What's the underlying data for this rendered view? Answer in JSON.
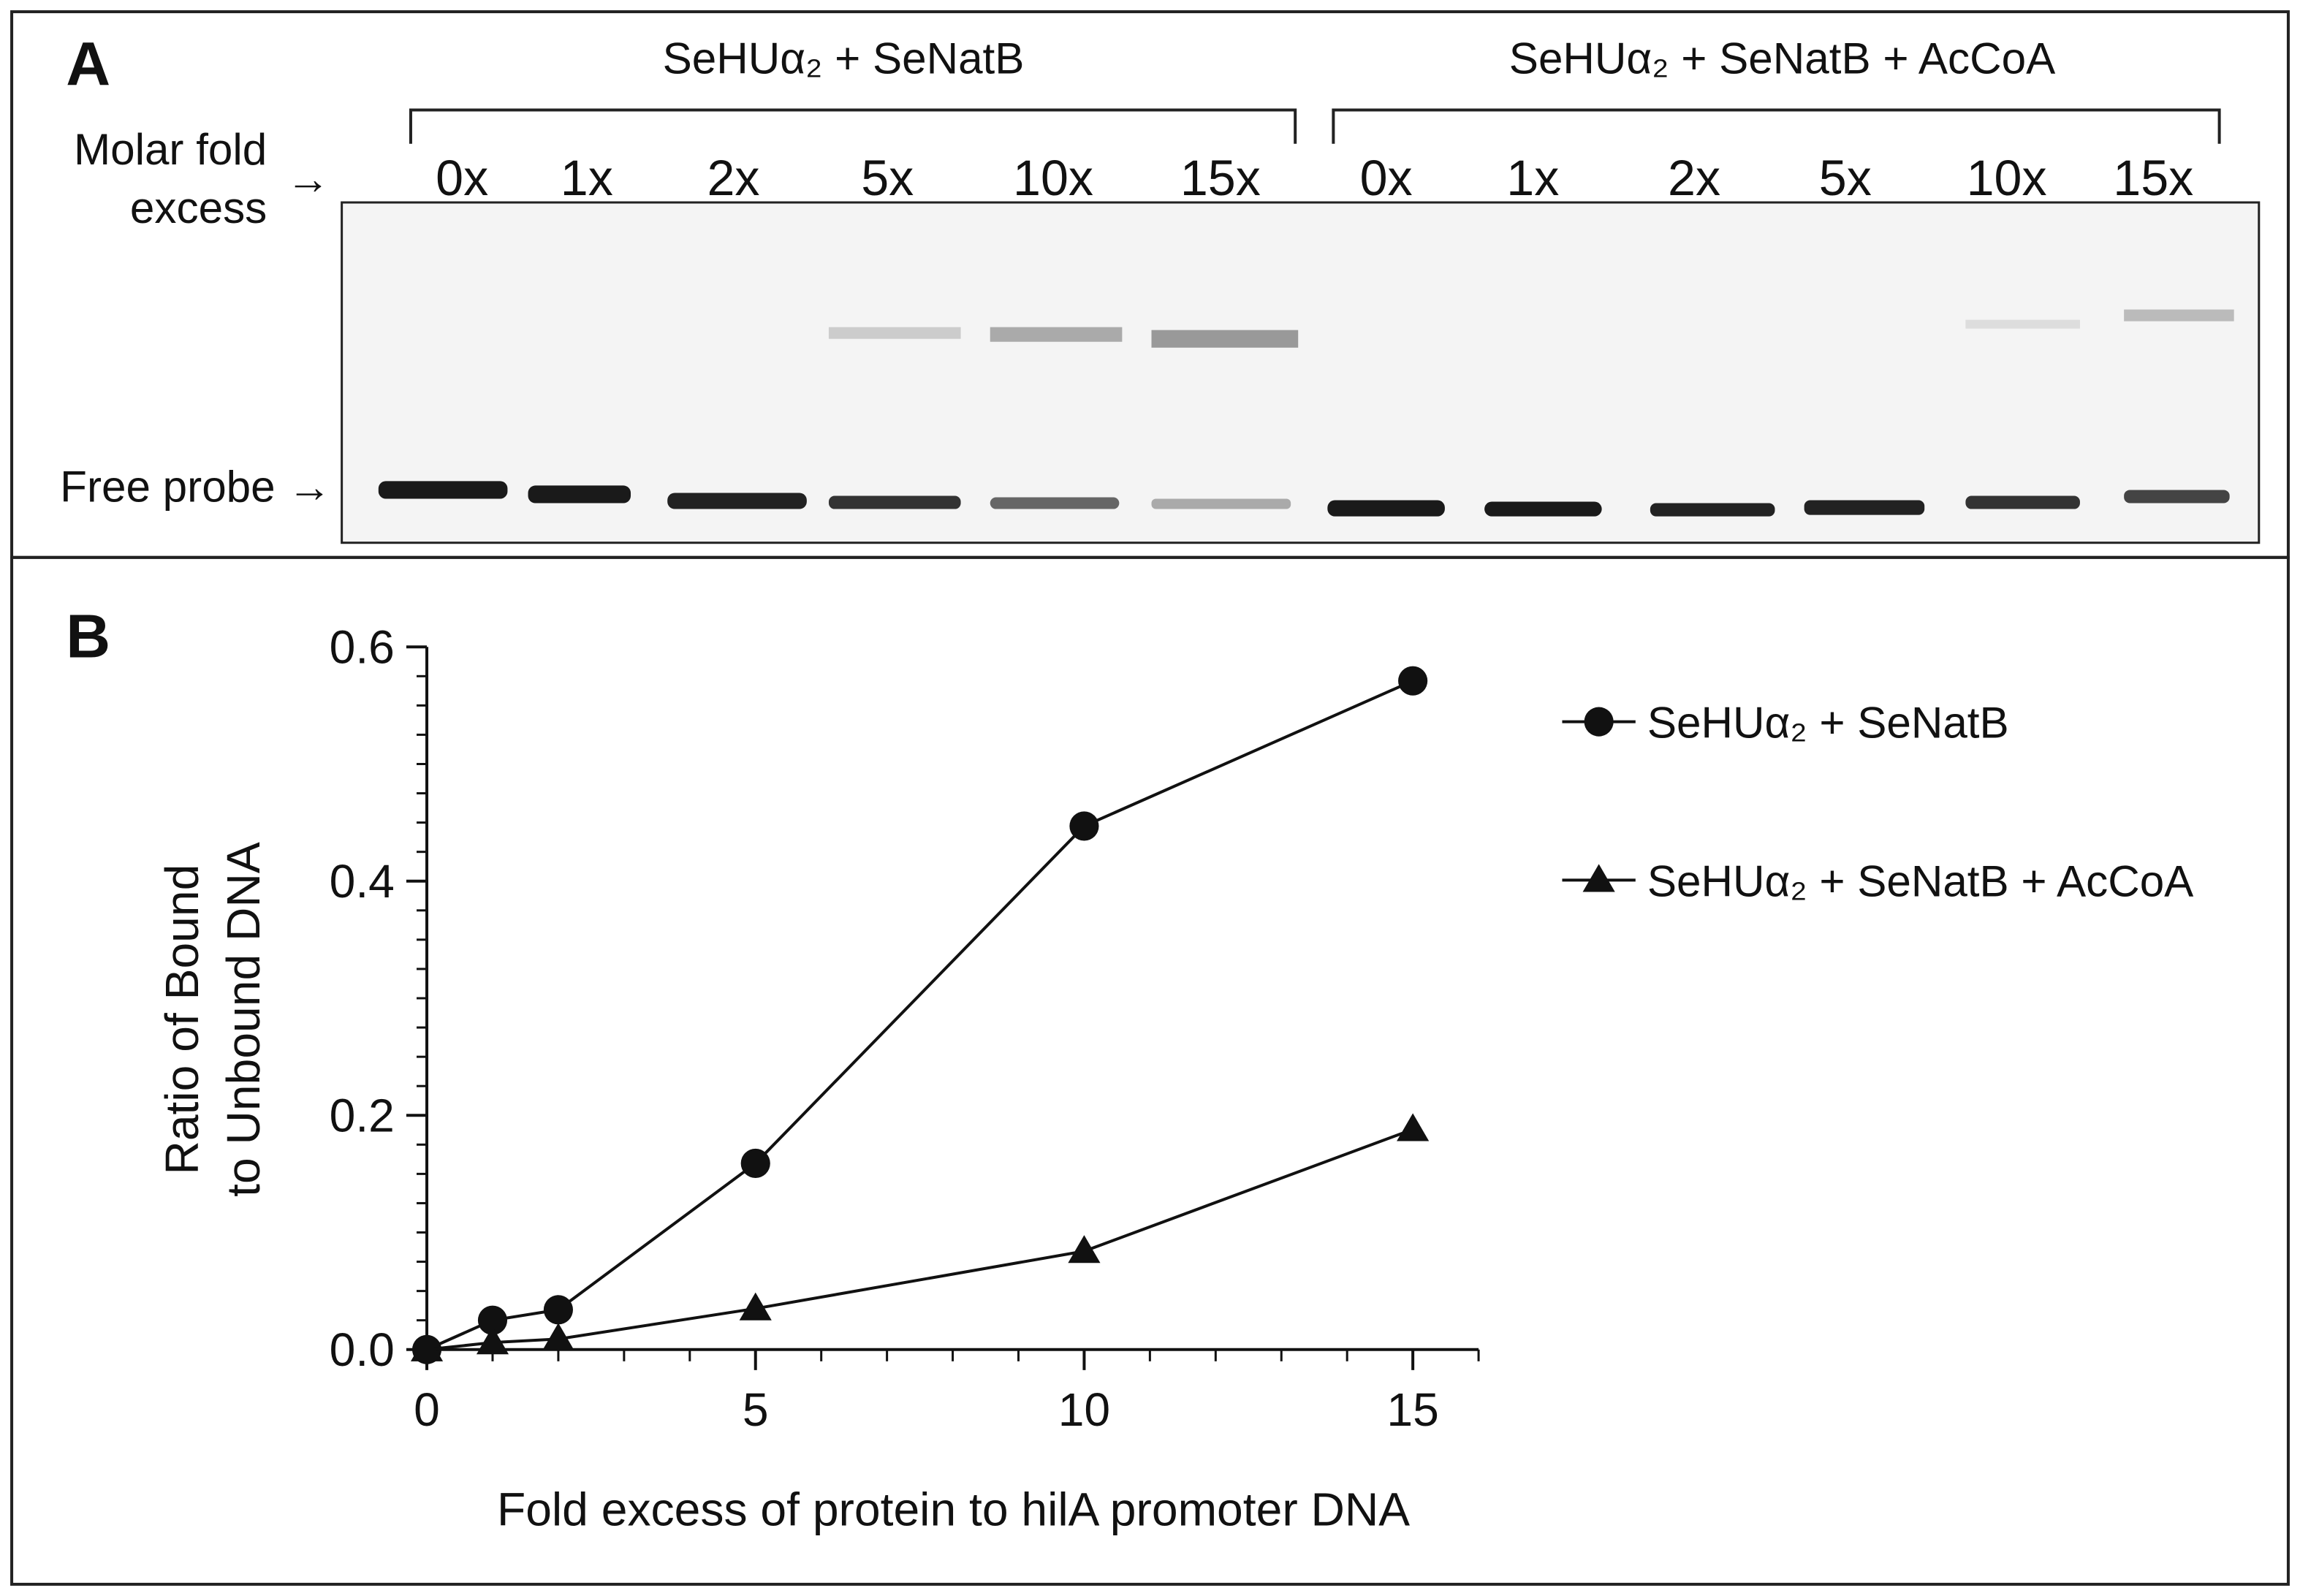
{
  "panel_a": {
    "letter": "A",
    "groups": [
      {
        "label": "SeHUα₂ + SeNatB"
      },
      {
        "label": "SeHUα₂ + SeNatB + AcCoA"
      }
    ],
    "lanes": [
      "0x",
      "1x",
      "2x",
      "5x",
      "10x",
      "15x",
      "0x",
      "1x",
      "2x",
      "5x",
      "10x",
      "15x"
    ],
    "molar_label": [
      "Molar fold",
      "excess"
    ],
    "arrow": "→",
    "free_probe": "Free probe →"
  },
  "chart_data": {
    "type": "line",
    "letter": "B",
    "x_label": "Fold excess of protein to hilA promoter DNA",
    "y_label": [
      "Ratio of Bound",
      "to Unbound DNA"
    ],
    "x": [
      0,
      1,
      2,
      5,
      10,
      15
    ],
    "series": [
      {
        "name": "SeHUα₂ + SeNatB",
        "color": "#111111",
        "marker": "circle",
        "values": [
          0,
          0.025,
          0.034,
          0.159,
          0.447,
          0.571
        ]
      },
      {
        "name": "SeHUα₂ + SeNatB + AcCoA",
        "color": "#111111",
        "marker": "triangle",
        "values": [
          0,
          0.006,
          0.009,
          0.035,
          0.084,
          0.188
        ]
      }
    ],
    "xlim": [
      0,
      16
    ],
    "xticks": [
      0,
      5,
      10,
      15
    ],
    "x_minor_ticks": [
      1,
      2,
      3,
      4,
      6,
      7,
      8,
      9,
      11,
      12,
      13,
      14,
      16
    ],
    "ylim": [
      0,
      0.6
    ],
    "yticks": [
      {
        "value": 0,
        "label": "0.0"
      },
      0.2,
      0.4,
      0.6
    ],
    "y_minor_ticks": [
      0.025,
      0.05,
      0.075,
      0.1,
      0.125,
      0.15,
      0.175,
      0.225,
      0.25,
      0.275,
      0.3,
      0.325,
      0.35,
      0.375,
      0.425,
      0.45,
      0.475,
      0.5,
      0.525,
      0.55,
      0.575
    ],
    "legend": "right"
  }
}
